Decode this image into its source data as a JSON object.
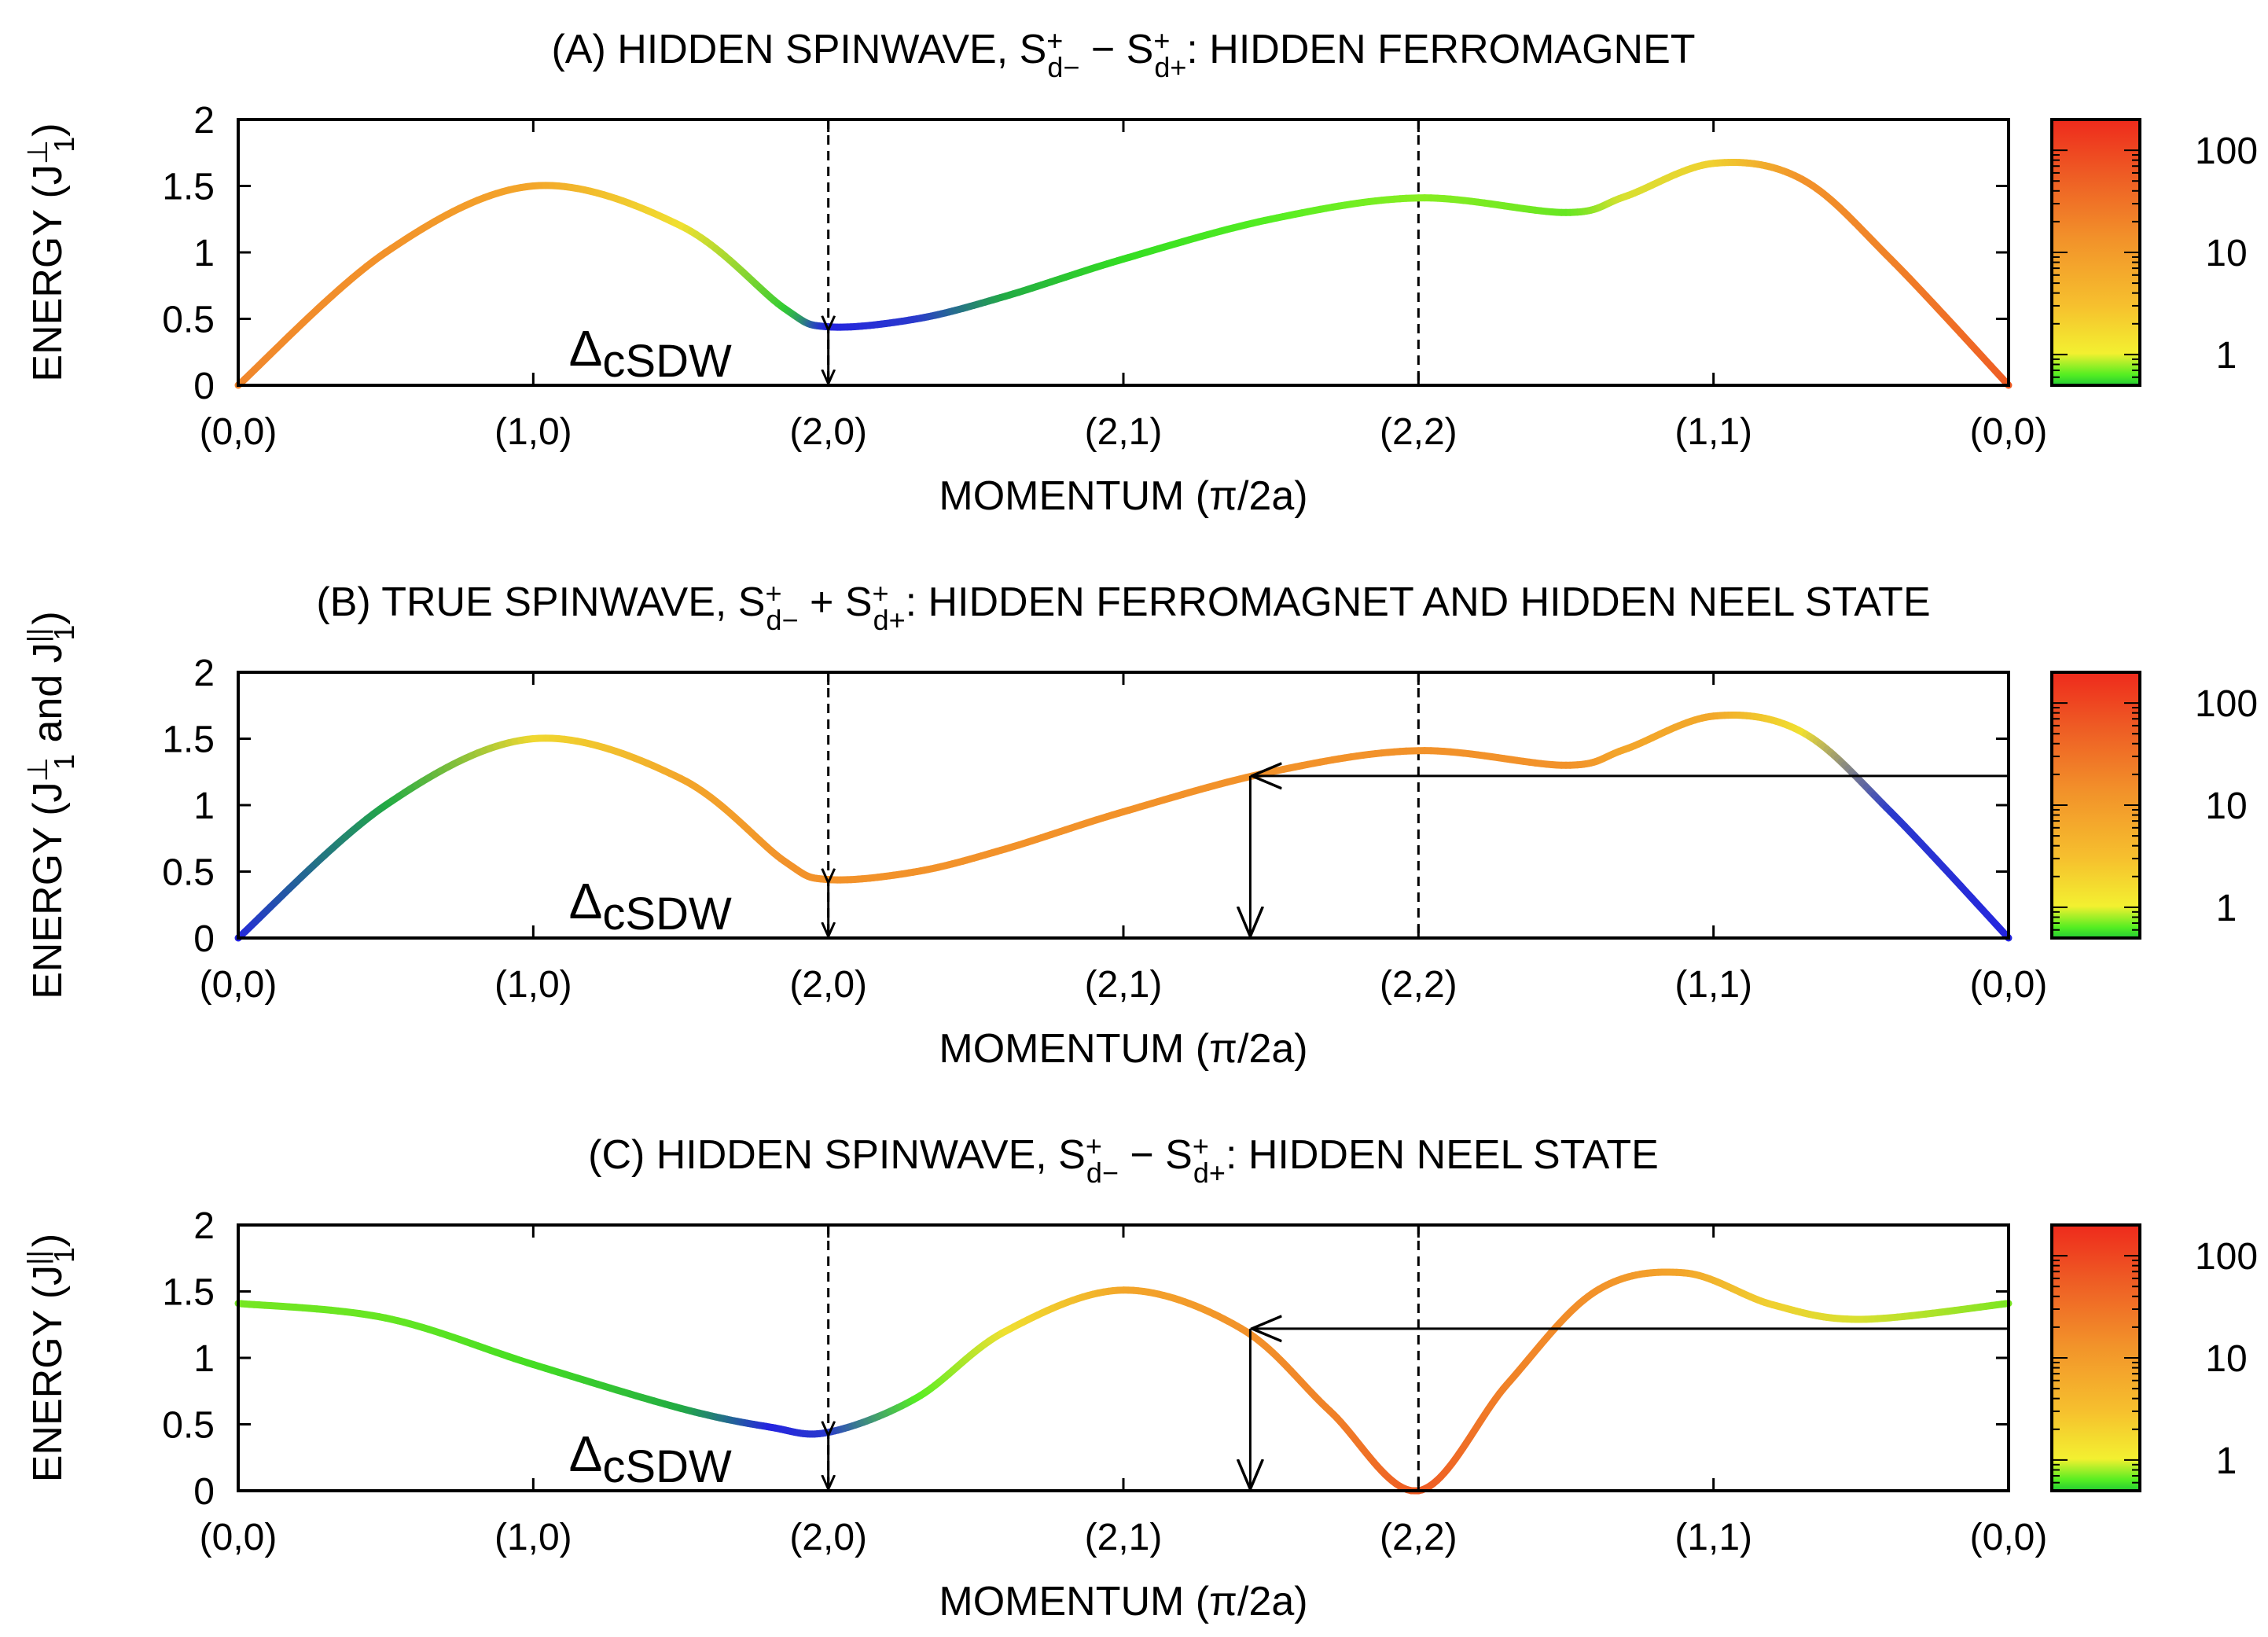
{
  "chart_data": [
    {
      "type": "line",
      "panel": "A",
      "title": {
        "prefix": "(A) HIDDEN SPINWAVE, S",
        "sub1": "d−",
        "op": " − S",
        "sub2": "d+",
        "suffix": ": HIDDEN FERROMAGNET"
      },
      "ylabel": {
        "main": "ENERGY (J",
        "sub": "1",
        "sup": "⊥",
        "tail": ")"
      },
      "xlabel": "MOMENTUM (π/2a)",
      "x_ticks": [
        "(0,0)",
        "(1,0)",
        "(2,0)",
        "(2,1)",
        "(2,2)",
        "(1,1)",
        "(0,0)"
      ],
      "y_ticks": [
        "0",
        "0.5",
        "1",
        "1.5",
        "2"
      ],
      "ylim": [
        0,
        2
      ],
      "gap_label": {
        "main": "Δ",
        "sub": "cSDW"
      },
      "gap_value": 0.44,
      "dashed_lines_at": [
        "(2,0)",
        "(2,2)"
      ],
      "colorbar_ticks": [
        "1",
        "10",
        "100"
      ],
      "series": [
        {
          "name": "dispersion",
          "x": [
            0,
            0.5,
            1,
            1.5,
            1.85,
            2,
            2.3,
            2.6,
            3,
            3.5,
            4,
            4.5,
            4.7,
            5,
            5.3,
            5.6,
            6
          ],
          "y": [
            0,
            1.0,
            1.5,
            1.2,
            0.58,
            0.44,
            0.5,
            0.67,
            0.95,
            1.25,
            1.41,
            1.3,
            1.42,
            1.67,
            1.55,
            0.95,
            0
          ],
          "intensity_colors": [
            "#f0862c",
            "#f2922a",
            "#f3a62a",
            "#f0e030",
            "#33cc33",
            "#2424e0",
            "#2a3acc",
            "#22aa44",
            "#33dd22",
            "#55ee22",
            "#88ee22",
            "#66e622",
            "#d8e030",
            "#f0d030",
            "#f2922a",
            "#f08228",
            "#ee5a24"
          ]
        }
      ]
    },
    {
      "type": "line",
      "panel": "B",
      "title": {
        "prefix": "(B) TRUE SPINWAVE, S",
        "sub1": "d−",
        "op": " + S",
        "sub2": "d+",
        "suffix": ": HIDDEN FERROMAGNET AND HIDDEN NEEL STATE"
      },
      "ylabel": {
        "main": "ENERGY (J",
        "sub": "1",
        "sup": "⊥",
        "tail": " and J",
        "sub2": "1",
        "sup2": "||",
        "tail2": ")"
      },
      "xlabel": "MOMENTUM (π/2a)",
      "x_ticks": [
        "(0,0)",
        "(1,0)",
        "(2,0)",
        "(2,1)",
        "(2,2)",
        "(1,1)",
        "(0,0)"
      ],
      "y_ticks": [
        "0",
        "0.5",
        "1",
        "1.5",
        "2"
      ],
      "ylim": [
        0,
        2
      ],
      "gap_label": {
        "main": "Δ",
        "sub": "cSDW"
      },
      "gap_value": 0.44,
      "dashed_lines_at": [
        "(2,0)",
        "(2,2)"
      ],
      "colorbar_ticks": [
        "1",
        "10",
        "100"
      ],
      "series": [
        {
          "name": "dispersion",
          "x": [
            0,
            0.5,
            1,
            1.5,
            1.85,
            2,
            2.3,
            2.6,
            3,
            3.5,
            4,
            4.5,
            4.7,
            5,
            5.3,
            5.6,
            6
          ],
          "y": [
            0,
            1.0,
            1.5,
            1.2,
            0.58,
            0.44,
            0.5,
            0.67,
            0.95,
            1.25,
            1.41,
            1.3,
            1.42,
            1.67,
            1.55,
            0.95,
            0
          ],
          "intensity_colors": [
            "#2424e0",
            "#22aa44",
            "#f0d830",
            "#f3a62a",
            "#f2922a",
            "#f2922a",
            "#f2922a",
            "#f2922a",
            "#f2922a",
            "#f2922a",
            "#f2922a",
            "#f2922a",
            "#f3a62a",
            "#f2a82a",
            "#f0e030",
            "#2a3acc",
            "#2424e0"
          ]
        }
      ],
      "arrow": {
        "from_x": 6,
        "level": 1.22,
        "to_x": 3.43,
        "down_to": 0
      }
    },
    {
      "type": "line",
      "panel": "C",
      "title": {
        "prefix": "(C) HIDDEN SPINWAVE, S",
        "sub1": "d−",
        "op": " − S",
        "sub2": "d+",
        "suffix": ": HIDDEN NEEL STATE"
      },
      "ylabel": {
        "main": "ENERGY (J",
        "sub": "1",
        "sup": "||",
        "tail": ")"
      },
      "xlabel": "MOMENTUM (π/2a)",
      "x_ticks": [
        "(0,0)",
        "(1,0)",
        "(2,0)",
        "(2,1)",
        "(2,2)",
        "(1,1)",
        "(0,0)"
      ],
      "y_ticks": [
        "0",
        "0.5",
        "1",
        "1.5",
        "2"
      ],
      "ylim": [
        0,
        2
      ],
      "gap_label": {
        "main": "Δ",
        "sub": "cSDW"
      },
      "gap_value": 0.44,
      "dashed_lines_at": [
        "(2,0)",
        "(2,2)"
      ],
      "colorbar_ticks": [
        "1",
        "10",
        "100"
      ],
      "series": [
        {
          "name": "dispersion",
          "x": [
            0,
            0.5,
            1,
            1.5,
            1.8,
            2,
            2.3,
            2.6,
            3,
            3.4,
            3.7,
            4,
            4.3,
            4.6,
            4.9,
            5.2,
            5.5,
            6
          ],
          "y": [
            1.41,
            1.3,
            0.95,
            0.62,
            0.48,
            0.44,
            0.7,
            1.2,
            1.51,
            1.22,
            0.6,
            0,
            0.8,
            1.5,
            1.64,
            1.4,
            1.29,
            1.41
          ],
          "intensity_colors": [
            "#77e622",
            "#66e622",
            "#44dd22",
            "#22aa44",
            "#2424e0",
            "#2a3acc",
            "#55ee22",
            "#f0e030",
            "#f3a62a",
            "#f2922a",
            "#f08228",
            "#ee5a24",
            "#f08228",
            "#f2922a",
            "#f3a62a",
            "#f0d030",
            "#d8e030",
            "#77e622"
          ]
        }
      ],
      "arrow": {
        "from_x": 6,
        "level": 1.22,
        "to_x": 3.43,
        "down_to": 0
      }
    }
  ]
}
